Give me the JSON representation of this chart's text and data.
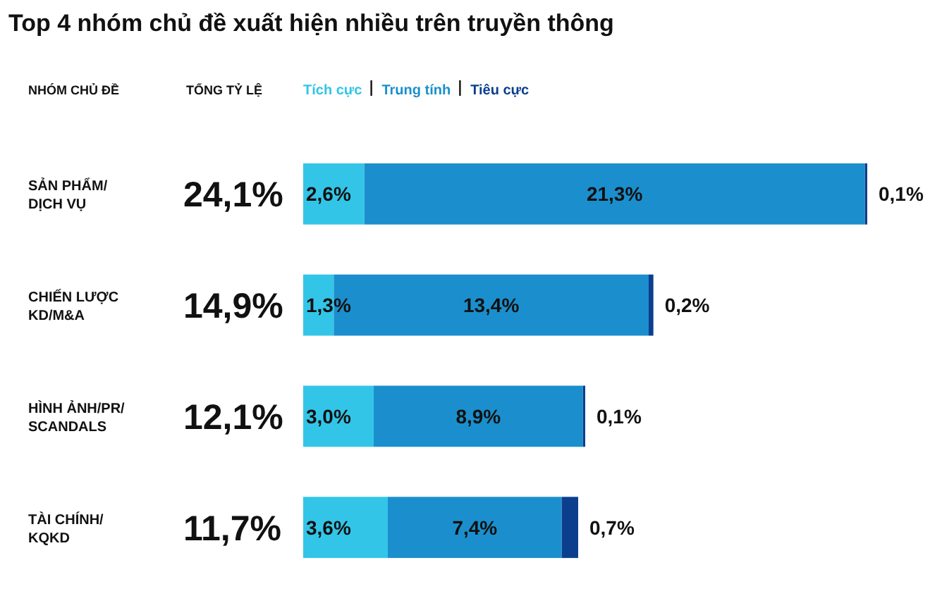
{
  "chart_data": {
    "type": "bar",
    "orientation": "horizontal",
    "stacked": true,
    "title": "Top 4 nhóm chủ đề xuất hiện nhiều trên truyền thông",
    "annotations": [
      "NHÓM CHỦ ĐỀ",
      "TỔNG TỶ LỆ"
    ],
    "categories": [
      "SẢN PHẨM/ DỊCH VỤ",
      "CHIẾN LƯỢC KD/M&A",
      "HÌNH ẢNH/PR/ SCANDALS",
      "TÀI CHÍNH/ KQKD"
    ],
    "series": [
      {
        "name": "Tích cực",
        "color": "#33c5e8",
        "values": [
          2.6,
          1.3,
          3.0,
          3.6
        ],
        "value_labels": [
          "2,6%",
          "1,3%",
          "3,0%",
          "3,6%"
        ]
      },
      {
        "name": "Trung tính",
        "color": "#1b8fcd",
        "values": [
          21.3,
          13.4,
          8.9,
          7.4
        ],
        "value_labels": [
          "21,3%",
          "13,4%",
          "8,9%",
          "7,4%"
        ]
      },
      {
        "name": "Tiêu cực",
        "color": "#0b3f8e",
        "values": [
          0.1,
          0.2,
          0.1,
          0.7
        ],
        "value_labels": [
          "0,1%",
          "0,2%",
          "0,1%",
          "0,7%"
        ]
      }
    ],
    "totals": [
      "24,1%",
      "14,9%",
      "12,1%",
      "11,7%"
    ],
    "legend": "top"
  }
}
